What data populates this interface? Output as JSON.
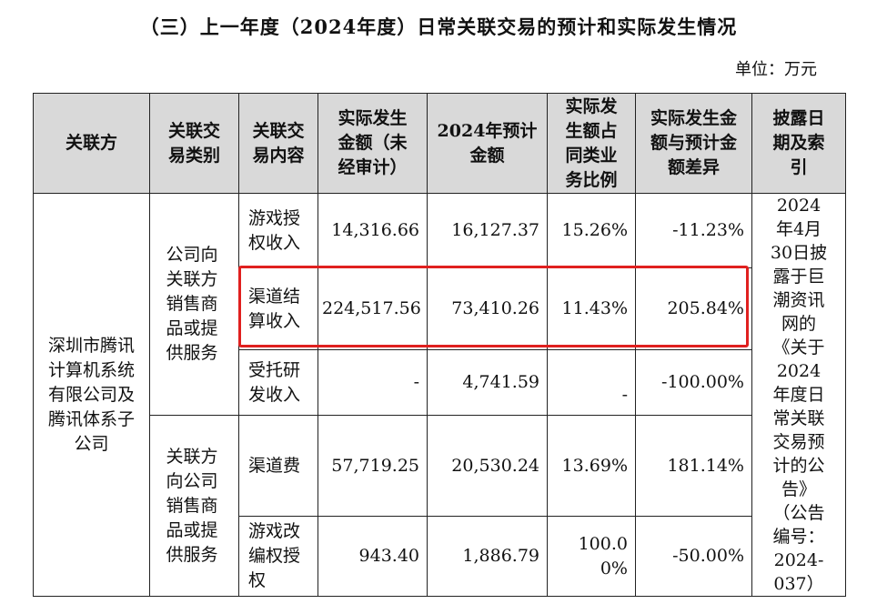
{
  "title": "（三）上一年度（2024年度）日常关联交易的预计和实际发生情况",
  "unit": "单位：万元",
  "headers": {
    "party": "关联方",
    "category": "关联交易类别",
    "content": "关联交易内容",
    "actual": "实际发生金额（未经审计）",
    "forecast": "2024年预计金额",
    "ratio": "实际发生额占同类业务比例",
    "diff": "实际发生金额与预计金额差异",
    "disclosure": "披露日期及索引"
  },
  "party_name": "深圳市腾讯计算机系统有限公司及腾讯体系子公司",
  "category_sales": "公司向关联方销售商品或提供服务",
  "category_purchase": "关联方向公司销售商品或提供服务",
  "disclosure_text": "2024年4月30日披露于巨潮资讯网的《关于2024年度日常关联交易预计的公告》（公告编号：2024-037）",
  "rows": [
    {
      "content": "游戏授权收入",
      "actual": "14,316.66",
      "forecast": "16,127.37",
      "ratio": "15.26%",
      "diff": "-11.23%"
    },
    {
      "content": "渠道结算收入",
      "actual": "224,517.56",
      "forecast": "73,410.26",
      "ratio": "11.43%",
      "diff": "205.84%"
    },
    {
      "content": "受托研发收入",
      "actual": "-",
      "forecast": "4,741.59",
      "ratio": "-",
      "diff": "-100.00%"
    },
    {
      "content": "渠道费",
      "actual": "57,719.25",
      "forecast": "20,530.24",
      "ratio": "13.69%",
      "diff": "181.14%"
    },
    {
      "content": "游戏改编权授权",
      "actual": "943.40",
      "forecast": "1,886.79",
      "ratio": "100.00%",
      "diff": "-50.00%"
    }
  ],
  "highlight_color": "#e0201f",
  "header_bg": "#d9d9d9"
}
